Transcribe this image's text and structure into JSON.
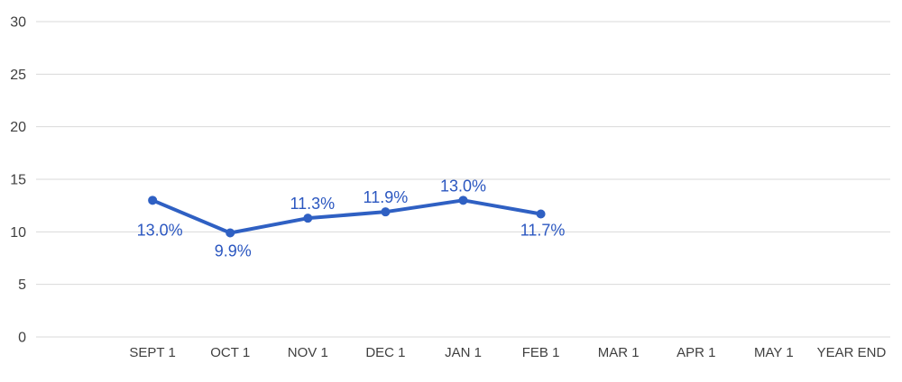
{
  "chart_data": {
    "type": "line",
    "title": "",
    "xlabel": "",
    "ylabel": "",
    "categories": [
      "SEPT 1",
      "OCT 1",
      "NOV 1",
      "DEC 1",
      "JAN 1",
      "FEB 1",
      "MAR 1",
      "APR 1",
      "MAY 1",
      "YEAR END"
    ],
    "series": [
      {
        "name": "series-1",
        "points": [
          {
            "category": "SEPT 1",
            "value": 13.0,
            "label": "13.0%",
            "label_position": "below"
          },
          {
            "category": "OCT 1",
            "value": 9.9,
            "label": "9.9%",
            "label_position": "below"
          },
          {
            "category": "NOV 1",
            "value": 11.3,
            "label": "11.3%",
            "label_position": "above"
          },
          {
            "category": "DEC 1",
            "value": 11.9,
            "label": "11.9%",
            "label_position": "above"
          },
          {
            "category": "JAN 1",
            "value": 13.0,
            "label": "13.0%",
            "label_position": "above"
          },
          {
            "category": "FEB 1",
            "value": 11.7,
            "label": "11.7%",
            "label_position": "below"
          }
        ]
      }
    ],
    "ylim": [
      0,
      30
    ],
    "y_ticks": [
      0,
      5,
      10,
      15,
      20,
      25,
      30
    ],
    "grid": true,
    "legend": "none",
    "marker": "circle",
    "colors": {
      "line": "#2F60C3",
      "marker": "#2F60C3",
      "data_label": "#2B57C0",
      "axis_text": "#3F3F3F",
      "gridline": "#D9D9D9",
      "background": "#FFFFFF"
    }
  }
}
